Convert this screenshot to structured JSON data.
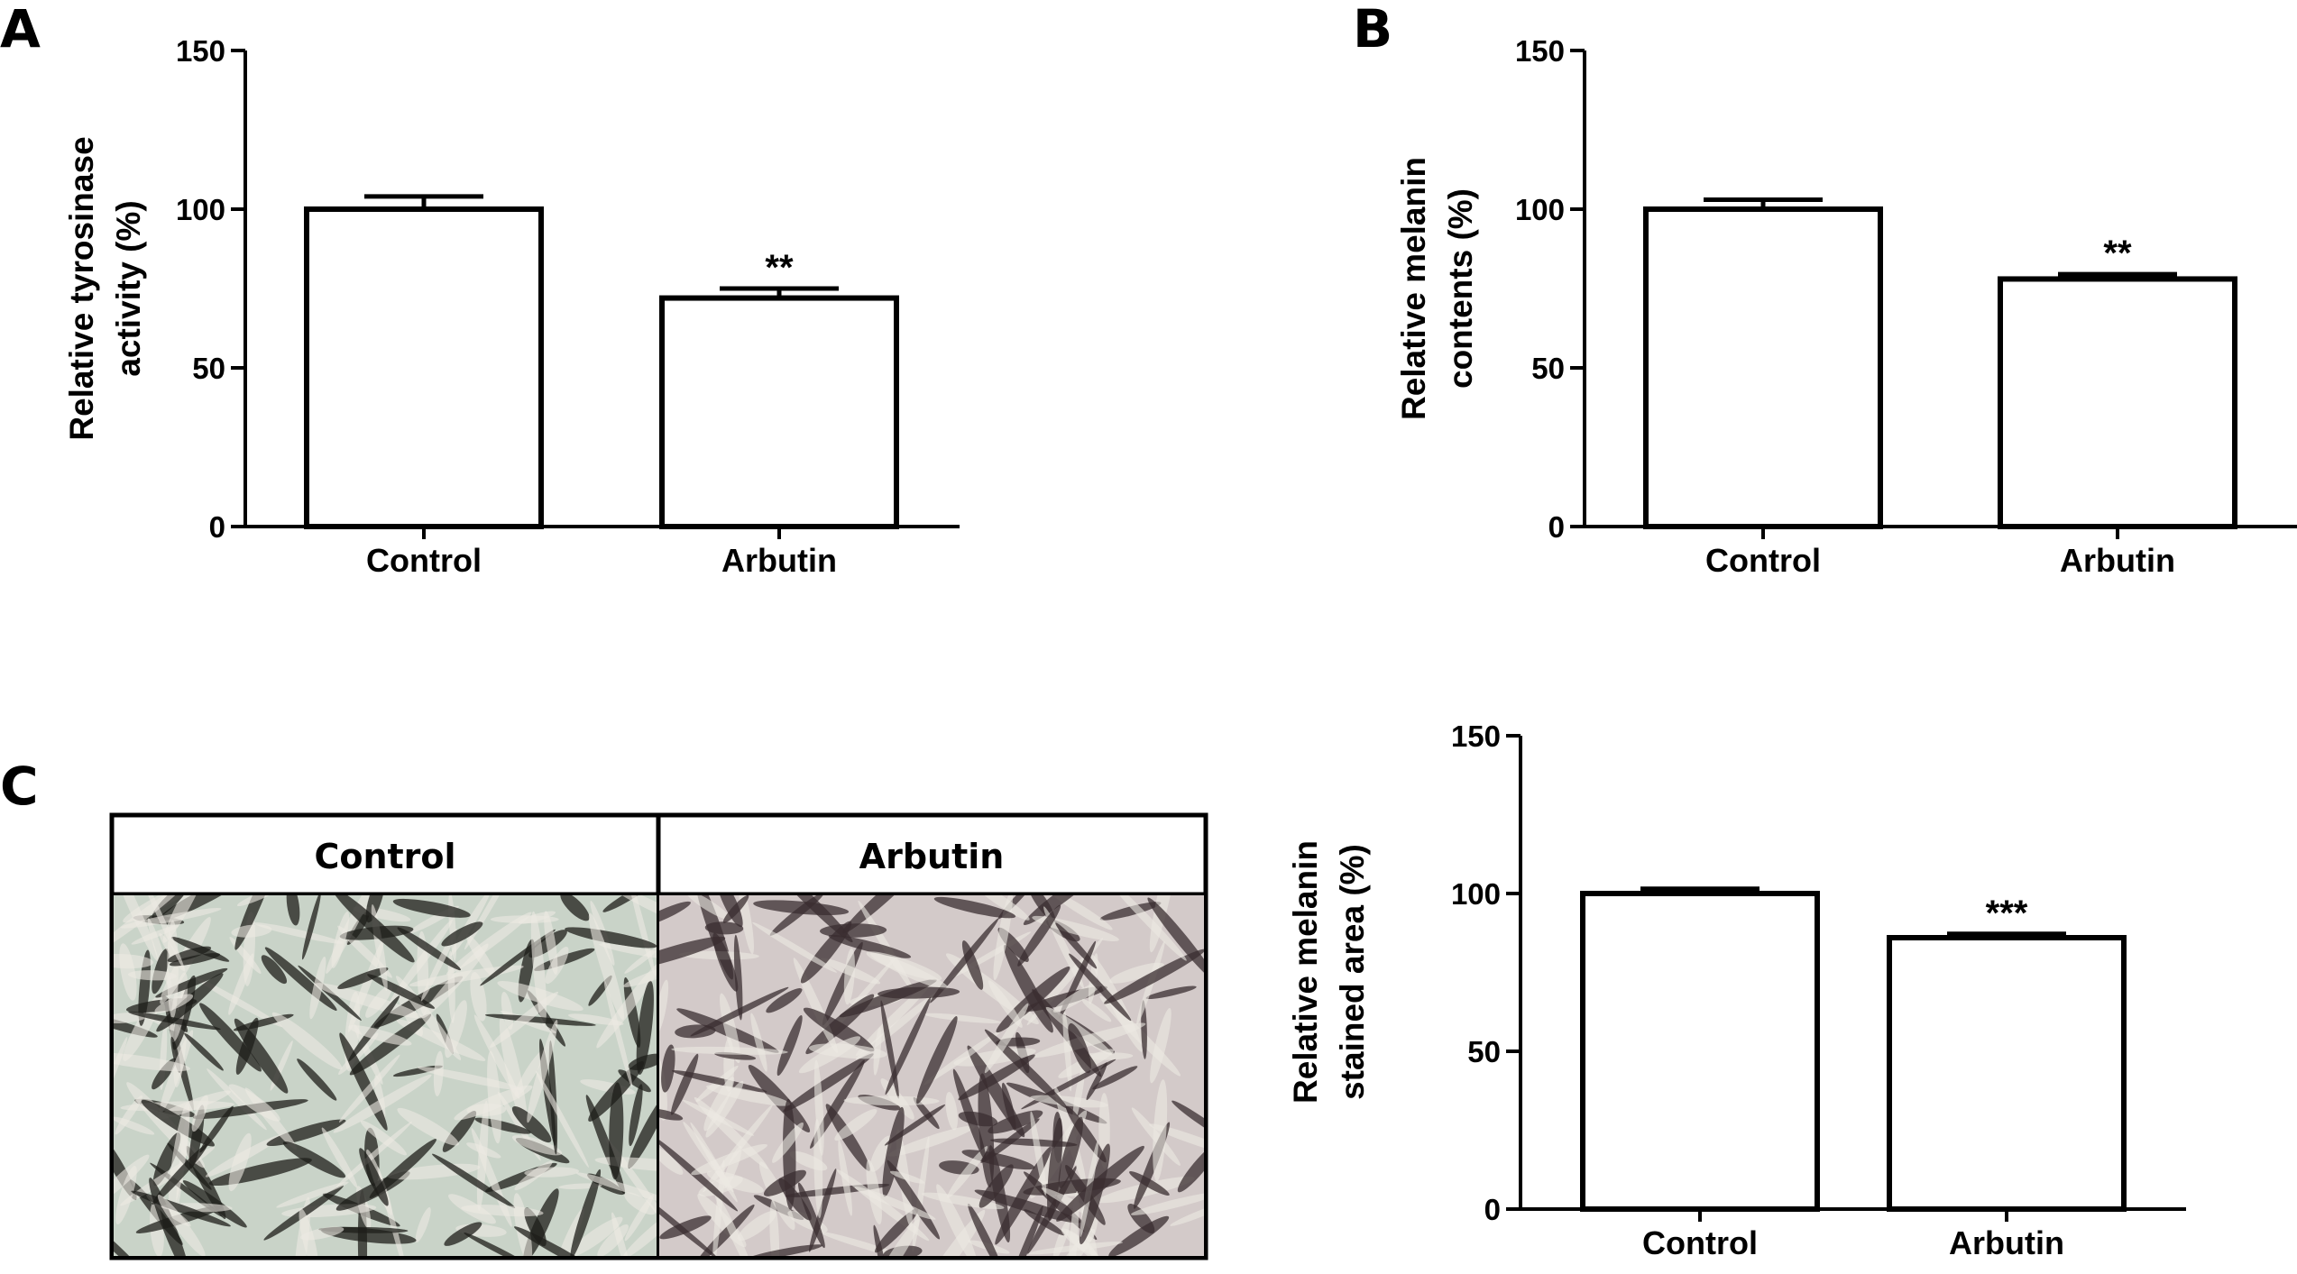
{
  "panels": {
    "a": "A",
    "b": "B",
    "c": "C"
  },
  "micrographs": {
    "labels": [
      "Control",
      "Arbutin"
    ],
    "colors": {
      "control_bg": "#c9d3c8",
      "control_cell": "#1d1d1a",
      "arbutin_bg": "#d3cac9",
      "arbutin_cell": "#3a2e30"
    }
  },
  "chart_data": [
    {
      "type": "bar",
      "panel": "A",
      "categories": [
        "Control",
        "Arbutin"
      ],
      "values": [
        100,
        72
      ],
      "errors": [
        4,
        3
      ],
      "significance": [
        "",
        "**"
      ],
      "ylabel_lines": [
        "Relative tyrosinase",
        "activity (%)"
      ],
      "yticks": [
        0,
        50,
        100,
        150
      ],
      "ylim": [
        0,
        150
      ],
      "grid": false
    },
    {
      "type": "bar",
      "panel": "B",
      "categories": [
        "Control",
        "Arbutin"
      ],
      "values": [
        100,
        78
      ],
      "errors": [
        3,
        1.5
      ],
      "significance": [
        "",
        "**"
      ],
      "ylabel_lines": [
        "Relative melanin",
        "contents (%)"
      ],
      "yticks": [
        0,
        50,
        100,
        150
      ],
      "ylim": [
        0,
        150
      ],
      "grid": false
    },
    {
      "type": "bar",
      "panel": "C",
      "categories": [
        "Control",
        "Arbutin"
      ],
      "values": [
        100,
        86
      ],
      "errors": [
        1.5,
        1.2
      ],
      "significance": [
        "",
        "***"
      ],
      "ylabel_lines": [
        "Relative melanin",
        "stained area (%)"
      ],
      "yticks": [
        0,
        50,
        100,
        150
      ],
      "ylim": [
        0,
        150
      ],
      "grid": false
    }
  ]
}
